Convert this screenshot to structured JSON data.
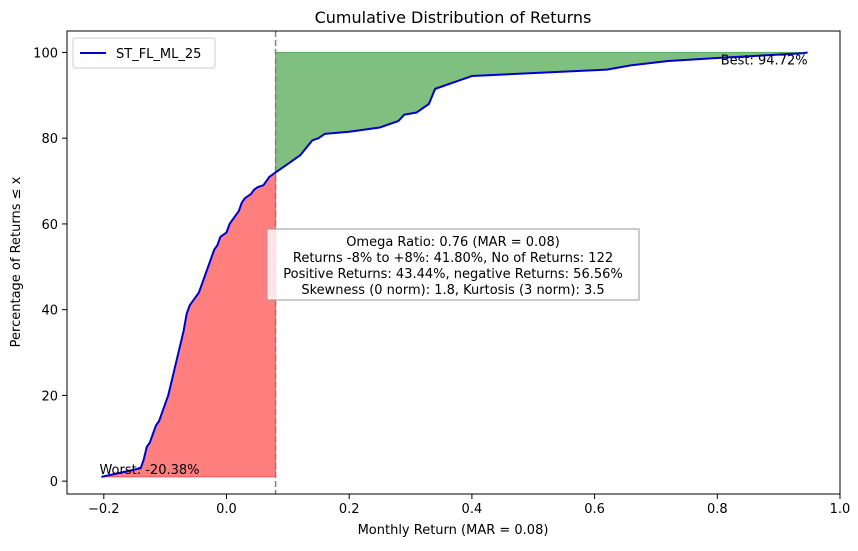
{
  "chart_data": {
    "type": "line",
    "title": "Cumulative Distribution of Returns",
    "xlabel": "Monthly Return (MAR = 0.08)",
    "ylabel": "Percentage of Returns ≤ x",
    "xlim": [
      -0.26,
      1.0
    ],
    "ylim": [
      -3,
      105
    ],
    "x_ticks": [
      -0.2,
      0.0,
      0.2,
      0.4,
      0.6,
      0.8,
      1.0
    ],
    "x_tick_labels": [
      "−0.2",
      "0.0",
      "0.2",
      "0.4",
      "0.6",
      "0.8",
      "1.0"
    ],
    "y_ticks": [
      0,
      20,
      40,
      60,
      80,
      100
    ],
    "y_tick_labels": [
      "0",
      "20",
      "40",
      "60",
      "80",
      "100"
    ],
    "grid": false,
    "legend_position": "top-left",
    "mar": 0.08,
    "series": [
      {
        "name": "ST_FL_ML_25",
        "color": "#0000cc",
        "x": [
          -0.2038,
          -0.14,
          -0.135,
          -0.13,
          -0.125,
          -0.12,
          -0.115,
          -0.11,
          -0.105,
          -0.1,
          -0.095,
          -0.09,
          -0.085,
          -0.08,
          -0.075,
          -0.07,
          -0.065,
          -0.06,
          -0.055,
          -0.05,
          -0.045,
          -0.04,
          -0.035,
          -0.03,
          -0.025,
          -0.02,
          -0.015,
          -0.01,
          -0.005,
          0.0,
          0.005,
          0.01,
          0.015,
          0.02,
          0.025,
          0.03,
          0.035,
          0.04,
          0.045,
          0.05,
          0.055,
          0.06,
          0.065,
          0.07,
          0.075,
          0.08,
          0.09,
          0.1,
          0.12,
          0.14,
          0.15,
          0.16,
          0.2,
          0.25,
          0.28,
          0.29,
          0.31,
          0.33,
          0.34,
          0.37,
          0.4,
          0.62,
          0.66,
          0.72,
          0.8,
          0.94,
          0.9472
        ],
        "y": [
          1,
          3,
          5,
          8,
          9,
          11,
          13,
          14,
          16,
          18,
          20,
          23,
          26,
          29,
          32,
          35,
          39,
          41,
          42,
          43,
          44,
          46,
          48,
          50,
          52,
          54,
          55,
          57,
          57.5,
          58,
          60,
          61,
          62,
          63,
          65,
          66,
          66.5,
          67,
          68,
          68.5,
          68.8,
          69,
          70,
          71,
          71.5,
          72,
          73,
          74,
          76,
          79.5,
          80,
          81,
          81.5,
          82.5,
          84,
          85.5,
          86,
          88,
          91.5,
          93,
          94.5,
          96,
          97,
          98,
          98.7,
          99.8,
          100
        ]
      }
    ],
    "fill_below_mar": {
      "color": "#ff0000",
      "label": ""
    },
    "fill_above_mar": {
      "color": "#008000",
      "label": ""
    },
    "annotations": {
      "worst": "Worst: -20.38%",
      "best": "Best: 94.72%",
      "stats_lines": [
        "Omega Ratio: 0.76 (MAR = 0.08)",
        "Returns -8% to +8%: 41.80%, No of Returns: 122",
        "Positive Returns: 43.44%, negative Returns: 56.56%",
        "Skewness (0 norm): 1.8, Kurtosis (3 norm): 3.5"
      ]
    }
  }
}
